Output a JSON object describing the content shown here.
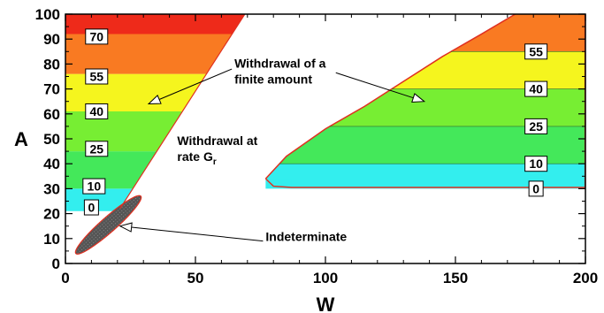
{
  "chart_data": {
    "type": "contour",
    "xlabel": "W",
    "ylabel": "A",
    "xlim": [
      0,
      200
    ],
    "ylim": [
      0,
      100
    ],
    "x_ticks": [
      0,
      50,
      100,
      150,
      200
    ],
    "y_ticks": [
      0,
      10,
      20,
      30,
      40,
      50,
      60,
      70,
      80,
      90,
      100
    ],
    "grid": false,
    "bands": [
      {
        "from": 30,
        "to": 40,
        "color": "#33eeee"
      },
      {
        "from": 40,
        "to": 55,
        "color": "#44e85a"
      },
      {
        "from": 55,
        "to": 70,
        "color": "#77ee33"
      },
      {
        "from": 70,
        "to": 85,
        "color": "#f5f51e"
      },
      {
        "from": 85,
        "to": 100,
        "color": "#f97a22"
      }
    ],
    "left_bands": [
      {
        "from": 0,
        "to": 21,
        "color": "#ffffff"
      },
      {
        "from": 21,
        "to": 30,
        "color": "#33eeee"
      },
      {
        "from": 30,
        "to": 45,
        "color": "#44e85a"
      },
      {
        "from": 45,
        "to": 61,
        "color": "#77ee33"
      },
      {
        "from": 61,
        "to": 76,
        "color": "#f5f51e"
      },
      {
        "from": 76,
        "to": 92,
        "color": "#f97a22"
      },
      {
        "from": 92,
        "to": 100,
        "color": "#ee2a1a"
      }
    ],
    "left_boundary": {
      "x0": 21,
      "y0": 22,
      "x1": 69,
      "y1": 100
    },
    "right_boundary": {
      "upper": [
        [
          77,
          34
        ],
        [
          85,
          43
        ],
        [
          100,
          54
        ],
        [
          115,
          63
        ],
        [
          130,
          73
        ],
        [
          145,
          83
        ],
        [
          160,
          92
        ],
        [
          173,
          100
        ]
      ],
      "lower": [
        [
          77,
          34
        ],
        [
          80,
          31
        ],
        [
          87,
          30.5
        ],
        [
          200,
          30.5
        ]
      ]
    },
    "indeterminate_region": {
      "center": [
        16,
        15
      ],
      "end1": [
        4,
        4
      ],
      "end2": [
        29,
        27
      ],
      "half_width": 3
    },
    "level_labels": [
      {
        "text": "70",
        "x": 12,
        "y": 91
      },
      {
        "text": "55",
        "x": 12,
        "y": 75
      },
      {
        "text": "40",
        "x": 12,
        "y": 61
      },
      {
        "text": "25",
        "x": 12,
        "y": 46
      },
      {
        "text": "10",
        "x": 11,
        "y": 31
      },
      {
        "text": "0",
        "x": 10,
        "y": 22.5
      },
      {
        "text": "55",
        "x": 181,
        "y": 85
      },
      {
        "text": "40",
        "x": 181,
        "y": 70
      },
      {
        "text": "25",
        "x": 181,
        "y": 55
      },
      {
        "text": "10",
        "x": 181,
        "y": 40
      },
      {
        "text": "0",
        "x": 181,
        "y": 30
      }
    ],
    "annotations": [
      {
        "lines": [
          "Withdrawal of a",
          "finite amount"
        ],
        "x": 65,
        "y": 78.5
      },
      {
        "lines": [
          "Withdrawal at",
          "rate G"
        ],
        "subscript": "r",
        "x": 43,
        "y": 47.5
      },
      {
        "lines": [
          "Indeterminate"
        ],
        "x": 77,
        "y": 9
      }
    ],
    "arrows": [
      {
        "from": [
          64,
          78
        ],
        "to": [
          32,
          64
        ]
      },
      {
        "from": [
          104,
          76.5
        ],
        "to": [
          138,
          65
        ]
      },
      {
        "from": [
          76,
          9
        ],
        "to": [
          21,
          15
        ]
      }
    ]
  }
}
